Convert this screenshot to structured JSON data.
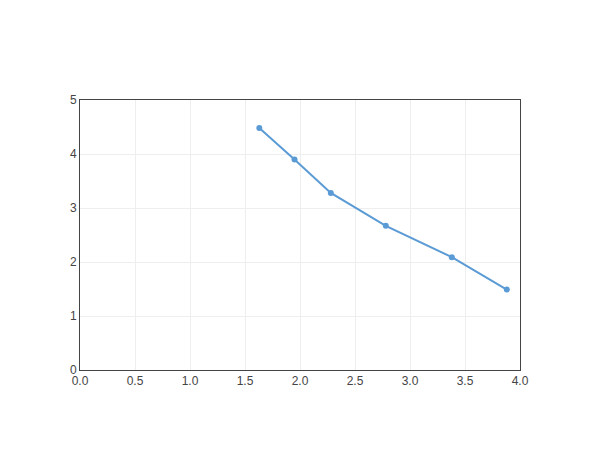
{
  "chart_data": {
    "type": "line",
    "x": [
      1.63,
      1.95,
      2.28,
      2.78,
      3.38,
      3.88
    ],
    "values": [
      4.48,
      3.9,
      3.28,
      2.67,
      2.09,
      1.49
    ],
    "color": "#5B9BD5",
    "marker": "circle",
    "xlim": [
      0.0,
      4.0
    ],
    "ylim": [
      0,
      5
    ],
    "xticks": [
      {
        "value": 0,
        "label": "0.0"
      },
      0.5,
      {
        "value": 1,
        "label": "1.0"
      },
      1.5,
      {
        "value": 2,
        "label": "2.0"
      },
      2.5,
      {
        "value": 3,
        "label": "3.0"
      },
      3.5,
      {
        "value": 4,
        "label": "4.0"
      }
    ],
    "yticks": [
      0,
      1,
      2,
      3,
      4,
      5
    ],
    "grid": true
  }
}
